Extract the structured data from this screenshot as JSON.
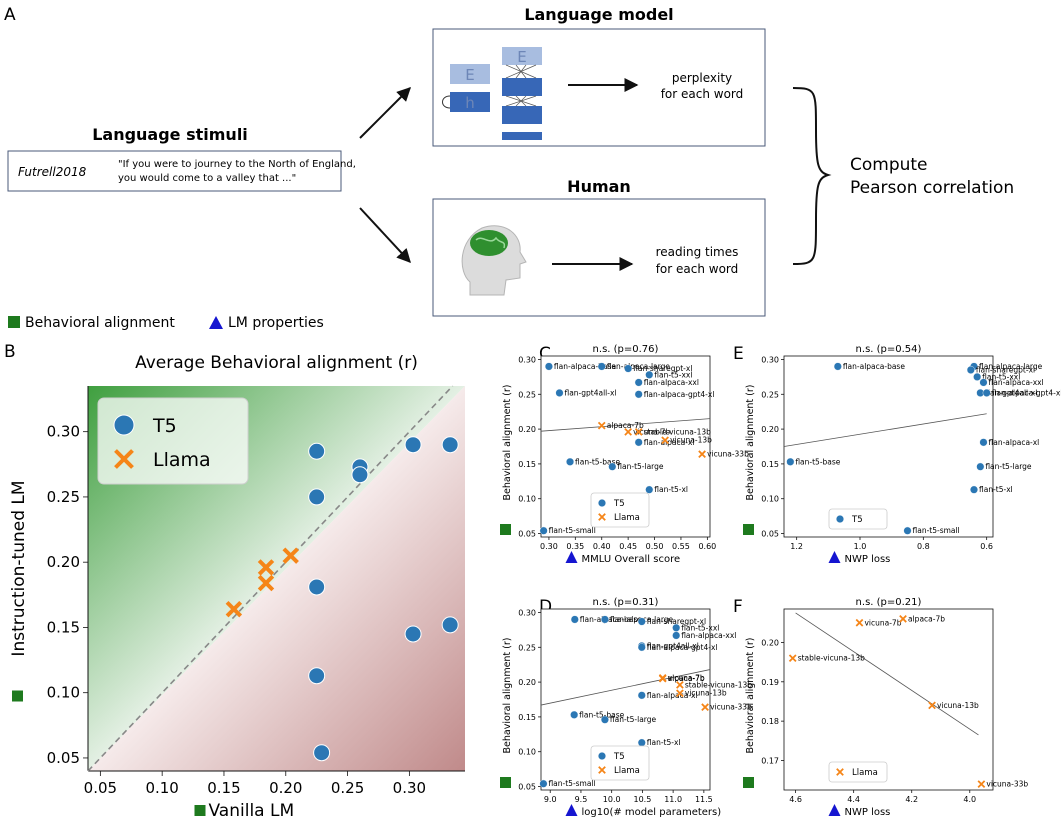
{
  "panel_a": {
    "label": "A",
    "stimuli_title": "Language stimuli",
    "dataset": "Futrell2018",
    "quote_line1": "\"If you were to journey to the North of England,",
    "quote_line2": "you would come to a valley that ...\"",
    "lm_title": "Language model",
    "lm_out1": "perplexity",
    "lm_out2": "for each word",
    "human_title": "Human",
    "human_out1": "reading times",
    "human_out2": "for each word",
    "compute1": "Compute",
    "compute2": "Pearson correlation",
    "block_e": "E",
    "block_h": "h"
  },
  "legend_top": {
    "behavioral": "Behavioral alignment",
    "lm_props": "LM properties",
    "behavioral_color": "#1e7a1e",
    "lm_color": "#1515d0"
  },
  "colors": {
    "t5": "#2b77b4",
    "llama": "#f58518",
    "trend": "#555555",
    "diag": "#888888"
  },
  "chart_data": [
    {
      "id": "B",
      "type": "scatter",
      "title": "Average Behavioral alignment (r)",
      "xlabel": "Vanilla LM",
      "ylabel": "Instruction-tuned LM",
      "xlim": [
        0.04,
        0.345
      ],
      "ylim": [
        0.04,
        0.335
      ],
      "xticks": [
        "0.05",
        "0.10",
        "0.15",
        "0.20",
        "0.25",
        "0.30"
      ],
      "yticks": [
        "0.05",
        "0.10",
        "0.15",
        "0.20",
        "0.25",
        "0.30"
      ],
      "legend": "top-left",
      "series": [
        {
          "name": "T5",
          "marker": "circle",
          "points": [
            [
              0.225,
              0.285
            ],
            [
              0.225,
              0.25
            ],
            [
              0.26,
              0.273
            ],
            [
              0.26,
              0.267
            ],
            [
              0.303,
              0.29
            ],
            [
              0.333,
              0.29
            ],
            [
              0.225,
              0.181
            ],
            [
              0.303,
              0.145
            ],
            [
              0.333,
              0.152
            ],
            [
              0.225,
              0.113
            ],
            [
              0.229,
              0.054
            ]
          ]
        },
        {
          "name": "Llama",
          "marker": "x",
          "points": [
            [
              0.158,
              0.164
            ],
            [
              0.184,
              0.196
            ],
            [
              0.184,
              0.184
            ],
            [
              0.204,
              0.205
            ]
          ]
        }
      ]
    },
    {
      "id": "C",
      "type": "scatter",
      "title": "n.s. (p=0.76)",
      "xlabel": "MMLU Overall score",
      "ylabel": "Behavioral alignment (r)",
      "xlim": [
        0.285,
        0.605
      ],
      "ylim": [
        0.045,
        0.305
      ],
      "xticks": [
        "0.30",
        "0.35",
        "0.40",
        "0.45",
        "0.50",
        "0.55",
        "0.60"
      ],
      "yticks": [
        "0.05",
        "0.10",
        "0.15",
        "0.20",
        "0.25",
        "0.30"
      ],
      "legend": "lower-center",
      "trend": [
        [
          0.285,
          0.197
        ],
        [
          0.605,
          0.215
        ]
      ],
      "series": [
        {
          "name": "T5",
          "marker": "circle",
          "points": [
            {
              "x": 0.3,
              "y": 0.29,
              "label": "flan-alpaca-base"
            },
            {
              "x": 0.4,
              "y": 0.29,
              "label": "flan-alpaca-large"
            },
            {
              "x": 0.45,
              "y": 0.287,
              "label": "flan-sharegpt-xl"
            },
            {
              "x": 0.49,
              "y": 0.278,
              "label": "flan-t5-xxl"
            },
            {
              "x": 0.47,
              "y": 0.267,
              "label": "flan-alpaca-xxl"
            },
            {
              "x": 0.32,
              "y": 0.252,
              "label": "flan-gpt4all-xl"
            },
            {
              "x": 0.47,
              "y": 0.25,
              "label": "flan-alpaca-gpt4-xl"
            },
            {
              "x": 0.47,
              "y": 0.181,
              "label": "flan-alpaca-xl"
            },
            {
              "x": 0.34,
              "y": 0.153,
              "label": "flan-t5-base"
            },
            {
              "x": 0.42,
              "y": 0.146,
              "label": "flan-t5-large"
            },
            {
              "x": 0.49,
              "y": 0.113,
              "label": "flan-t5-xl"
            },
            {
              "x": 0.29,
              "y": 0.054,
              "label": "flan-t5-small"
            }
          ]
        },
        {
          "name": "Llama",
          "marker": "x",
          "points": [
            {
              "x": 0.4,
              "y": 0.205,
              "label": "alpaca-7b"
            },
            {
              "x": 0.45,
              "y": 0.196,
              "label": "vicuna-7b"
            },
            {
              "x": 0.47,
              "y": 0.196,
              "label": "stable-vicuna-13b"
            },
            {
              "x": 0.52,
              "y": 0.184,
              "label": "vicuna-13b"
            },
            {
              "x": 0.59,
              "y": 0.164,
              "label": "vicuna-33b"
            }
          ]
        }
      ]
    },
    {
      "id": "D",
      "type": "scatter",
      "title": "n.s. (p=0.31)",
      "xlabel": "log10(# model parameters)",
      "ylabel": "Behavioral alignment (r)",
      "xlim": [
        8.85,
        11.6
      ],
      "ylim": [
        0.045,
        0.305
      ],
      "xticks": [
        "9.0",
        "9.5",
        "10.0",
        "10.5",
        "11.0",
        "11.5"
      ],
      "yticks": [
        "0.05",
        "0.10",
        "0.15",
        "0.20",
        "0.25",
        "0.30"
      ],
      "legend": "lower-center",
      "trend": [
        [
          8.85,
          0.167
        ],
        [
          11.6,
          0.218
        ]
      ],
      "series": [
        {
          "name": "T5",
          "marker": "circle",
          "points": [
            {
              "x": 9.4,
              "y": 0.29,
              "label": "flan-alpaca-base"
            },
            {
              "x": 9.89,
              "y": 0.29,
              "label": "flan-alpaca-large"
            },
            {
              "x": 10.49,
              "y": 0.287,
              "label": "flan-sharegpt-xl"
            },
            {
              "x": 11.05,
              "y": 0.278,
              "label": "flan-t5-xxl"
            },
            {
              "x": 11.05,
              "y": 0.267,
              "label": "flan-alpaca-xxl"
            },
            {
              "x": 10.49,
              "y": 0.252,
              "label": "flan-gpt4all-xl"
            },
            {
              "x": 10.49,
              "y": 0.25,
              "label": "flan-alpaca-gpt4-xl"
            },
            {
              "x": 10.49,
              "y": 0.181,
              "label": "flan-alpaca-xl"
            },
            {
              "x": 9.39,
              "y": 0.153,
              "label": "flan-t5-base"
            },
            {
              "x": 9.89,
              "y": 0.146,
              "label": "flan-t5-large"
            },
            {
              "x": 10.49,
              "y": 0.113,
              "label": "flan-t5-xl"
            },
            {
              "x": 8.89,
              "y": 0.054,
              "label": "flan-t5-small"
            }
          ]
        },
        {
          "name": "Llama",
          "marker": "x",
          "points": [
            {
              "x": 10.83,
              "y": 0.205,
              "label": "alpaca-7b"
            },
            {
              "x": 10.83,
              "y": 0.206,
              "label": "vicuna-7b"
            },
            {
              "x": 11.11,
              "y": 0.196,
              "label": "stable-vicuna-13b"
            },
            {
              "x": 11.11,
              "y": 0.184,
              "label": "vicuna-13b"
            },
            {
              "x": 11.52,
              "y": 0.164,
              "label": "vicuna-33b"
            }
          ]
        }
      ]
    },
    {
      "id": "E",
      "type": "scatter",
      "title": "n.s. (p=0.54)",
      "xlabel": "NWP loss",
      "ylabel": "Behavioral alignment (r)",
      "xlim": [
        1.24,
        0.58
      ],
      "ylim": [
        0.045,
        0.305
      ],
      "xticks": [
        "1.2",
        "1.0",
        "0.8",
        "0.6"
      ],
      "yticks": [
        "0.05",
        "0.10",
        "0.15",
        "0.20",
        "0.25",
        "0.30"
      ],
      "legend": "lower-left",
      "trend": [
        [
          1.24,
          0.175
        ],
        [
          0.6,
          0.222
        ]
      ],
      "series": [
        {
          "name": "T5",
          "marker": "circle",
          "points": [
            {
              "x": 1.07,
              "y": 0.29,
              "label": "flan-alpaca-base"
            },
            {
              "x": 0.64,
              "y": 0.29,
              "label": "flan-alpaca-large"
            },
            {
              "x": 0.65,
              "y": 0.285,
              "label": "flan-sharegpt-xl"
            },
            {
              "x": 0.63,
              "y": 0.275,
              "label": "flan-t5-xxl"
            },
            {
              "x": 0.61,
              "y": 0.267,
              "label": "flan-alpaca-xxl"
            },
            {
              "x": 0.62,
              "y": 0.252,
              "label": "flan-gpt4all-xl"
            },
            {
              "x": 0.6,
              "y": 0.252,
              "label": "flan-alpaca-gpt4-xl"
            },
            {
              "x": 0.61,
              "y": 0.181,
              "label": "flan-alpaca-xl"
            },
            {
              "x": 1.22,
              "y": 0.153,
              "label": "flan-t5-base"
            },
            {
              "x": 0.62,
              "y": 0.146,
              "label": "flan-t5-large"
            },
            {
              "x": 0.64,
              "y": 0.113,
              "label": "flan-t5-xl"
            },
            {
              "x": 0.85,
              "y": 0.054,
              "label": "flan-t5-small"
            }
          ]
        }
      ]
    },
    {
      "id": "F",
      "type": "scatter",
      "title": "n.s. (p=0.21)",
      "xlabel": "NWP loss",
      "ylabel": "Behavioral alignment (r)",
      "xlim": [
        4.64,
        3.92
      ],
      "ylim": [
        0.1625,
        0.2085
      ],
      "xticks": [
        "4.6",
        "4.4",
        "4.2",
        "4.0"
      ],
      "yticks": [
        "0.17",
        "0.18",
        "0.19",
        "0.20"
      ],
      "legend": "lower-left",
      "trend": [
        [
          4.6,
          0.2075
        ],
        [
          3.97,
          0.1765
        ]
      ],
      "series": [
        {
          "name": "Llama",
          "marker": "x",
          "points": [
            {
              "x": 4.38,
              "y": 0.205,
              "label": "vicuna-7b"
            },
            {
              "x": 4.23,
              "y": 0.206,
              "label": "alpaca-7b"
            },
            {
              "x": 4.61,
              "y": 0.196,
              "label": "stable-vicuna-13b"
            },
            {
              "x": 4.13,
              "y": 0.184,
              "label": "vicuna-13b"
            },
            {
              "x": 3.96,
              "y": 0.164,
              "label": "vicuna-33b"
            }
          ]
        }
      ]
    }
  ]
}
